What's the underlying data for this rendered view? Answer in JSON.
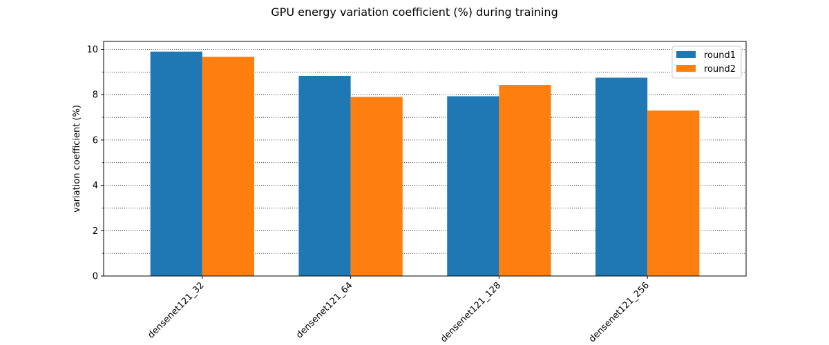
{
  "chart_data": {
    "type": "bar",
    "title": "GPU energy variation coefficient (%) during training",
    "xlabel": "",
    "ylabel": "variation coefficient (%)",
    "categories": [
      "densenet121_32",
      "densenet121_64",
      "densenet121_128",
      "densenet121_256"
    ],
    "series": [
      {
        "name": "round1",
        "color": "#1f77b4",
        "values": [
          9.9,
          8.83,
          7.93,
          8.75
        ]
      },
      {
        "name": "round2",
        "color": "#ff7f0e",
        "values": [
          9.67,
          7.9,
          8.43,
          7.3
        ]
      }
    ],
    "ylim": [
      0,
      10.35
    ],
    "yticks": [
      0,
      2,
      4,
      6,
      8,
      10
    ],
    "ytick_labels": [
      "0",
      "2",
      "4",
      "6",
      "8",
      "10"
    ],
    "grid": "horizontal dotted, major and minor",
    "legend_position": "top-right"
  }
}
